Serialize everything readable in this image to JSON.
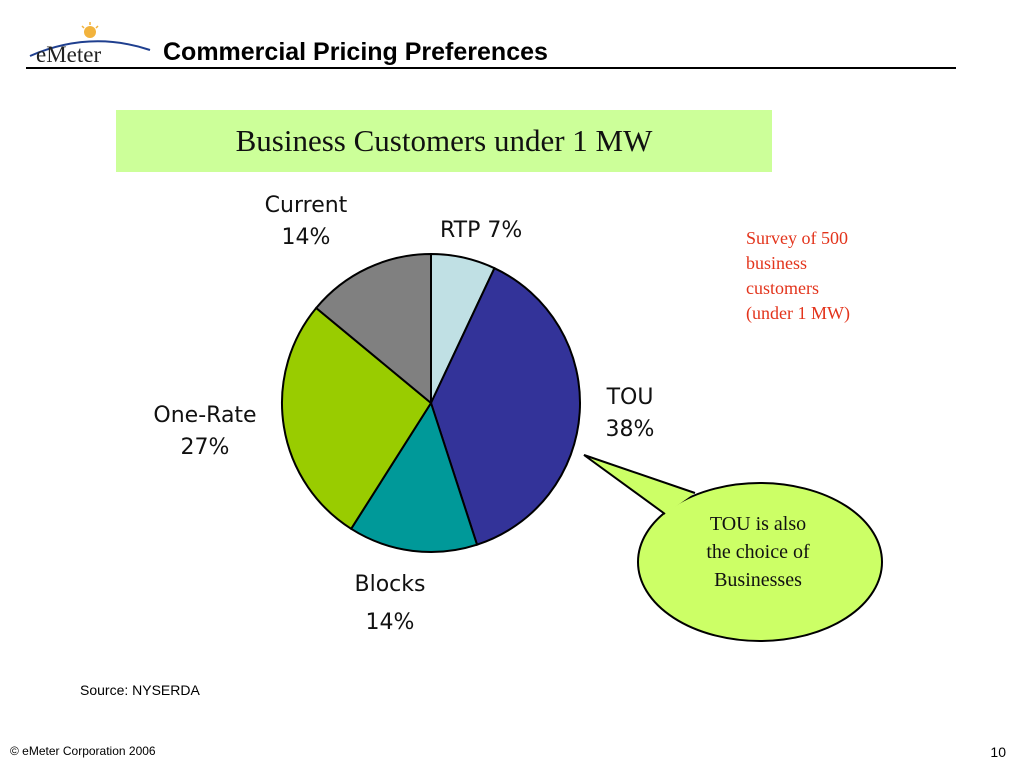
{
  "header": {
    "logo_text": "eMeter",
    "title": "Commercial Pricing Preferences"
  },
  "chart_data": {
    "type": "pie",
    "title": "Business Customers under 1 MW",
    "slices": [
      {
        "key": "rtp",
        "name": "RTP",
        "label_pct": "7%",
        "value": 7,
        "color": "#c0e0e4"
      },
      {
        "key": "tou",
        "name": "TOU",
        "label_pct": "38%",
        "value": 38,
        "color": "#333399"
      },
      {
        "key": "blocks",
        "name": "Blocks",
        "label_pct": "14%",
        "value": 14,
        "color": "#009999"
      },
      {
        "key": "onerate",
        "name": "One-Rate",
        "label_pct": "27%",
        "value": 27,
        "color": "#99cc00"
      },
      {
        "key": "current",
        "name": "Current",
        "label_pct": "14%",
        "value": 14,
        "color": "#808080"
      }
    ],
    "labels": {
      "rtp": "RTP 7%",
      "tou_name": "TOU",
      "tou_pct": "38%",
      "blocks_name": "Blocks",
      "blocks_pct": "14%",
      "onerate_name": "One-Rate",
      "onerate_pct": "27%",
      "current_name": "Current",
      "current_pct": "14%"
    },
    "annotation": {
      "survey_lines": [
        "Survey of 500",
        "business",
        "customers",
        "(under 1 MW)"
      ],
      "survey_color": "#e3341c",
      "callout_lines": [
        "TOU  is also",
        "the choice of",
        "Businesses"
      ],
      "callout_color": "#ccff66"
    }
  },
  "footer": {
    "source": "Source: NYSERDA",
    "copyright": "© eMeter Corporation 2006",
    "page_number": "10"
  }
}
